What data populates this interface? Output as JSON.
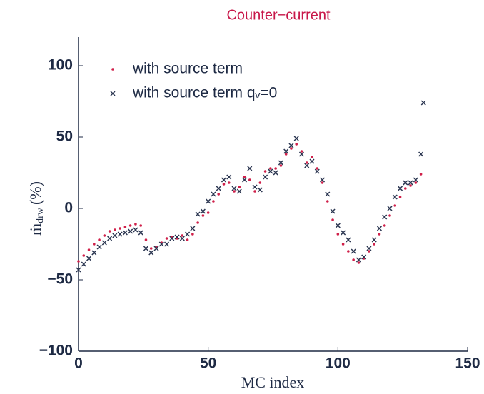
{
  "chart_data": {
    "type": "scatter",
    "title": "Counter−current",
    "title_color": "#c8184a",
    "xlabel": "MC index",
    "ylabel": {
      "main": "ṁ",
      "sub": "drw",
      "unit": "(%)"
    },
    "xlim": [
      0,
      150
    ],
    "xticks": [
      0,
      50,
      100,
      150
    ],
    "ylim": [
      -100,
      120
    ],
    "yticks": [
      {
        "value": -100,
        "label": "−100"
      },
      {
        "value": -50,
        "label": "−50"
      },
      0,
      50,
      100
    ],
    "grid": false,
    "legend": "upper left",
    "series": [
      {
        "name": "with source term",
        "color": "#d0204a",
        "marker": "dot",
        "x": [
          0,
          2,
          4,
          6,
          8,
          10,
          12,
          14,
          16,
          18,
          20,
          22,
          24,
          26,
          28,
          30,
          32,
          34,
          36,
          38,
          40,
          42,
          44,
          46,
          48,
          50,
          52,
          54,
          56,
          58,
          60,
          62,
          64,
          66,
          68,
          70,
          72,
          74,
          76,
          78,
          80,
          82,
          84,
          86,
          88,
          90,
          92,
          94,
          96,
          98,
          100,
          102,
          104,
          106,
          108,
          110,
          112,
          114,
          116,
          118,
          120,
          122,
          124,
          126,
          128,
          130,
          132
        ],
        "values": [
          -37,
          -33,
          -29,
          -25,
          -22,
          -19,
          -16,
          -15,
          -14,
          -13,
          -12,
          -11,
          -12,
          -22,
          -28,
          -27,
          -24,
          -21,
          -20,
          -21,
          -19,
          -22,
          -18,
          -10,
          -5,
          -3,
          5,
          10,
          17,
          18,
          12,
          15,
          22,
          20,
          12,
          18,
          26,
          28,
          28,
          30,
          38,
          42,
          45,
          40,
          32,
          36,
          28,
          18,
          5,
          -8,
          -18,
          -25,
          -30,
          -36,
          -38,
          -35,
          -30,
          -25,
          -18,
          -12,
          -5,
          2,
          8,
          14,
          16,
          18,
          24
        ]
      },
      {
        "name": "with source term qᵥ=0",
        "color": "#2a3550",
        "marker": "x",
        "x": [
          0,
          2,
          4,
          6,
          8,
          10,
          12,
          14,
          16,
          18,
          20,
          22,
          24,
          26,
          28,
          30,
          32,
          34,
          36,
          38,
          40,
          42,
          44,
          46,
          48,
          50,
          52,
          54,
          56,
          58,
          60,
          62,
          64,
          66,
          68,
          70,
          72,
          74,
          76,
          78,
          80,
          82,
          84,
          86,
          88,
          90,
          92,
          94,
          96,
          98,
          100,
          102,
          104,
          106,
          108,
          110,
          112,
          114,
          116,
          118,
          120,
          122,
          124,
          126,
          128,
          130,
          132,
          133
        ],
        "values": [
          -43,
          -39,
          -35,
          -31,
          -27,
          -24,
          -21,
          -19,
          -18,
          -17,
          -16,
          -15,
          -17,
          -28,
          -31,
          -28,
          -25,
          -25,
          -21,
          -20,
          -21,
          -18,
          -14,
          -4,
          -2,
          5,
          10,
          14,
          20,
          22,
          14,
          12,
          20,
          28,
          15,
          13,
          22,
          26,
          25,
          32,
          40,
          44,
          49,
          38,
          30,
          33,
          26,
          20,
          10,
          -2,
          -12,
          -17,
          -22,
          -30,
          -36,
          -34,
          -28,
          -22,
          -14,
          -6,
          0,
          8,
          14,
          18,
          18,
          20,
          38,
          74
        ]
      }
    ]
  }
}
